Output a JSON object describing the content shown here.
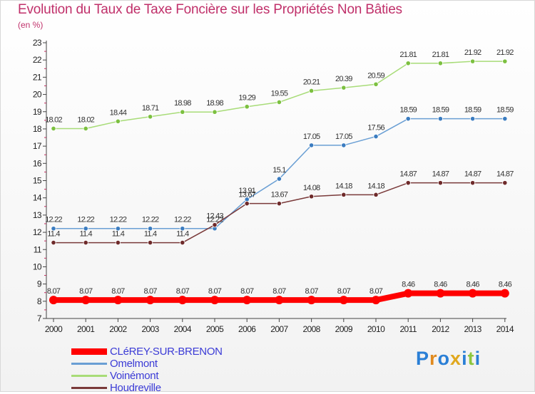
{
  "title": "Evolution du Taux de Taxe Foncière sur les Propriétés Non Bâties",
  "unit_label": "(en %)",
  "logo": {
    "letters": [
      "P",
      "r",
      "o",
      "x",
      "i",
      "t",
      "i"
    ],
    "colors": [
      "#2a7fd6",
      "#e08a1e",
      "#2a7fd6",
      "#e0a81e",
      "#2a7fd6",
      "#8dc63f",
      "#2a7fd6"
    ]
  },
  "chart_data": {
    "type": "line",
    "title": "Evolution du Taux de Taxe Foncière sur les Propriétés Non Bâties",
    "ylabel": "(en %)",
    "xlabel": "",
    "x": [
      "2000",
      "2001",
      "2002",
      "2003",
      "2004",
      "2005",
      "2006",
      "2007",
      "2008",
      "2009",
      "2010",
      "2011",
      "2012",
      "2013",
      "2014"
    ],
    "ylim": [
      7,
      23
    ],
    "yticks": [
      "7",
      "8",
      "9",
      "10",
      "11",
      "12",
      "13",
      "14",
      "15",
      "16",
      "17",
      "18",
      "19",
      "20",
      "21",
      "22",
      "23"
    ],
    "grid": false,
    "legend_position": "bottom-left",
    "series": [
      {
        "name": "CLéREY-SUR-BRENON",
        "color": "#ff0000",
        "point_color": "#ff0000",
        "width": 8,
        "values": [
          8.07,
          8.07,
          8.07,
          8.07,
          8.07,
          8.07,
          8.07,
          8.07,
          8.07,
          8.07,
          8.07,
          8.46,
          8.46,
          8.46,
          8.46
        ],
        "labels": [
          "8.07",
          "8.07",
          "8.07",
          "8.07",
          "8.07",
          "8.07",
          "8.07",
          "8.07",
          "8.07",
          "8.07",
          "8.07",
          "8.46",
          "8.46",
          "8.46",
          "8.46"
        ]
      },
      {
        "name": "Omelmont",
        "color": "#6a9fd4",
        "point_color": "#3b7cc0",
        "width": 1.5,
        "values": [
          12.22,
          12.22,
          12.22,
          12.22,
          12.22,
          12.22,
          13.91,
          15.1,
          17.05,
          17.05,
          17.56,
          18.59,
          18.59,
          18.59,
          18.59
        ],
        "labels": [
          "12.22",
          "12.22",
          "12.22",
          "12.22",
          "12.22",
          "12.22",
          "13.91",
          "15.1",
          "17.05",
          "17.05",
          "17.56",
          "18.59",
          "18.59",
          "18.59",
          "18.59"
        ]
      },
      {
        "name": "Voinémont",
        "color": "#a8dc78",
        "point_color": "#7cc040",
        "width": 1.5,
        "values": [
          18.02,
          18.02,
          18.44,
          18.71,
          18.98,
          18.98,
          19.29,
          19.55,
          20.21,
          20.39,
          20.59,
          21.81,
          21.81,
          21.92,
          21.92
        ],
        "labels": [
          "18.02",
          "18.02",
          "18.44",
          "18.71",
          "18.98",
          "18.98",
          "19.29",
          "19.55",
          "20.21",
          "20.39",
          "20.59",
          "21.81",
          "21.81",
          "21.92",
          "21.92"
        ]
      },
      {
        "name": "Houdreville",
        "color": "#7a3a3a",
        "point_color": "#6e2a2a",
        "width": 1.5,
        "values": [
          11.4,
          11.4,
          11.4,
          11.4,
          11.4,
          12.43,
          13.67,
          13.67,
          14.08,
          14.18,
          14.18,
          14.87,
          14.87,
          14.87,
          14.87
        ],
        "labels": [
          "11.4",
          "11.4",
          "11.4",
          "11.4",
          "11.4",
          "12.43",
          "13.67",
          "13.67",
          "14.08",
          "14.18",
          "14.18",
          "14.87",
          "14.87",
          "14.87",
          "14.87"
        ]
      }
    ]
  }
}
